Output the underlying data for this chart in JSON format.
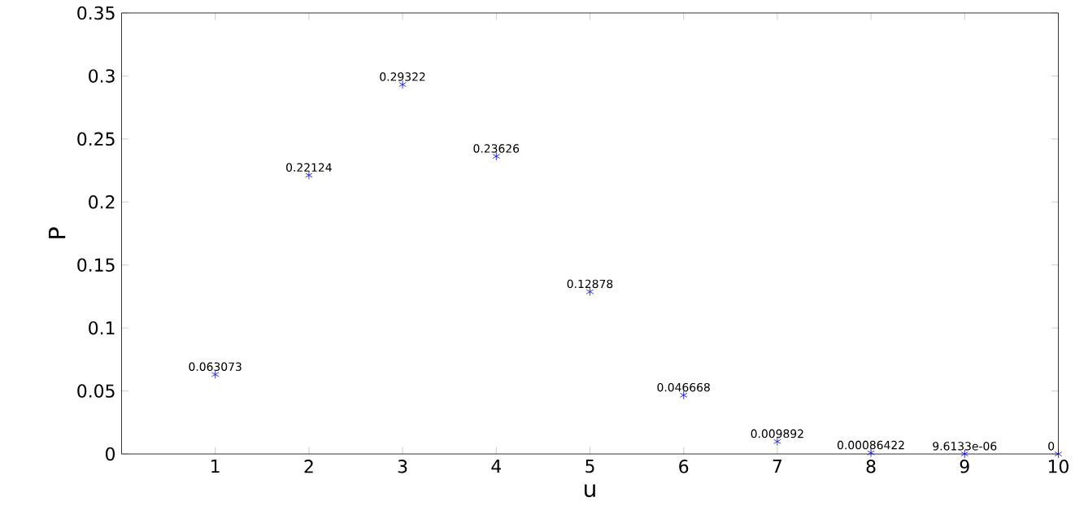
{
  "chart_data": {
    "type": "scatter",
    "xlabel": "u",
    "ylabel": "P",
    "x": [
      1,
      2,
      3,
      4,
      5,
      6,
      7,
      8,
      9,
      10
    ],
    "values": [
      0.063073,
      0.22124,
      0.29322,
      0.23626,
      0.12878,
      0.046668,
      0.009892,
      0.00086422,
      9.6133e-06,
      0
    ],
    "value_labels": [
      "0.063073",
      "0.22124",
      "0.29322",
      "0.23626",
      "0.12878",
      "0.046668",
      "0.009892",
      "0.00086422",
      "9.6133e-06",
      "0"
    ],
    "color": "#0000ff",
    "marker": "cross",
    "xlim": [
      0,
      10
    ],
    "xticks": [
      1,
      2,
      3,
      4,
      5,
      6,
      7,
      8,
      9,
      10
    ],
    "ylim": [
      0,
      0.35
    ],
    "yticks": [
      0,
      0.05,
      0.1,
      0.15,
      0.2,
      0.25,
      0.3,
      0.35
    ],
    "grid": false
  }
}
